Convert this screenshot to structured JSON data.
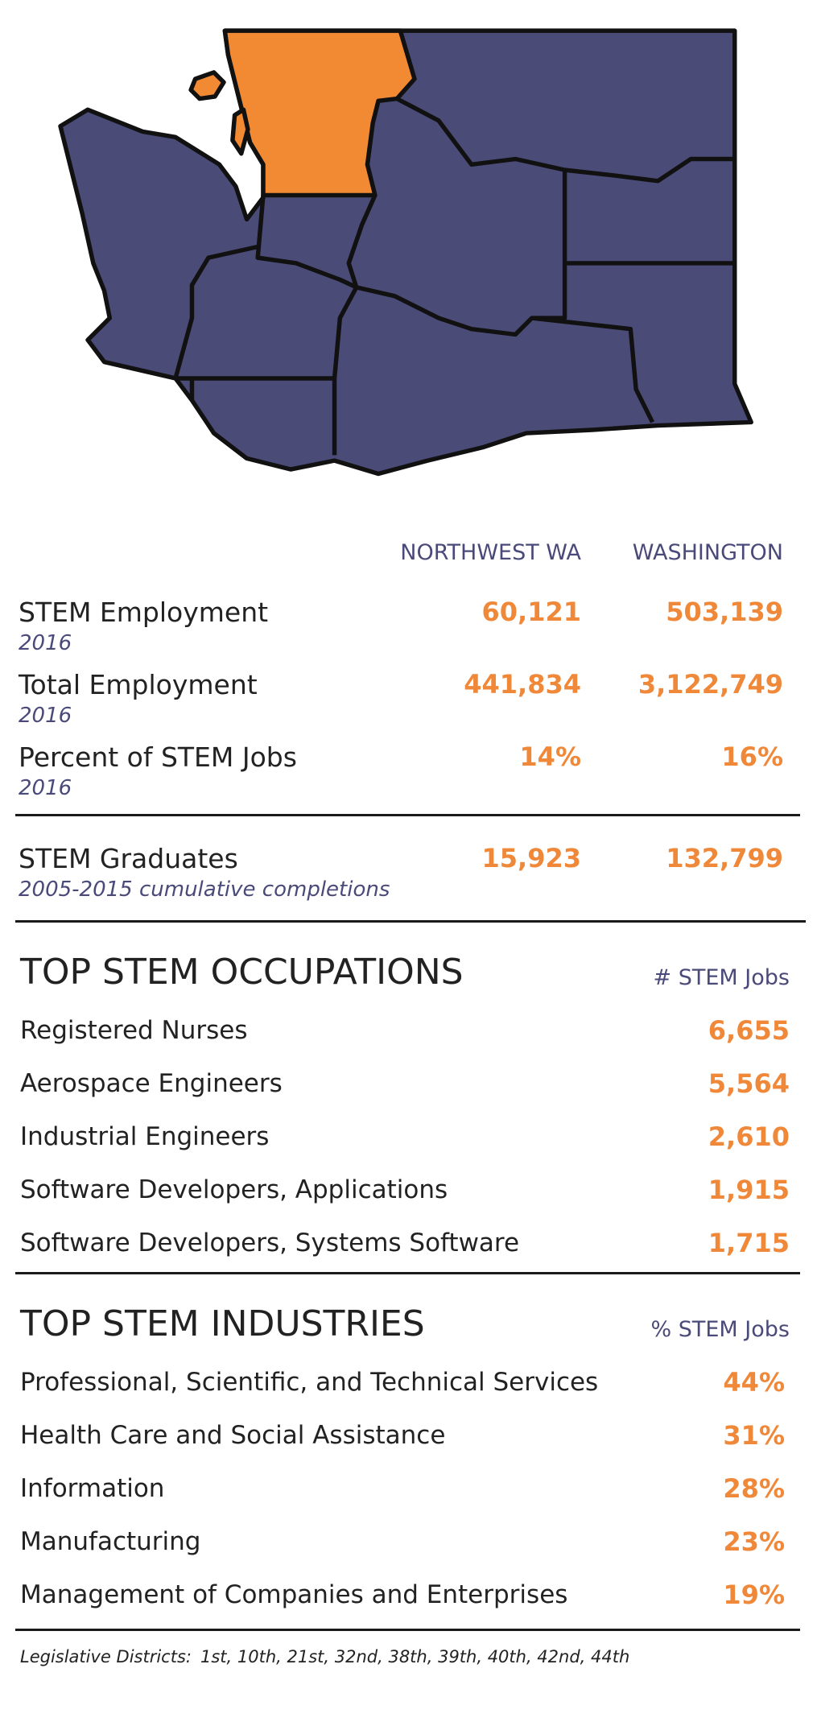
{
  "stats": {
    "columns": [
      "NORTHWEST WA",
      "WASHINGTON"
    ],
    "rows": [
      {
        "label": "STEM Employment",
        "period": "2016",
        "values": [
          "60,121",
          "503,139"
        ]
      },
      {
        "label": "Total Employment",
        "period": "2016",
        "values": [
          "441,834",
          "3,122,749"
        ]
      },
      {
        "label": "Percent of STEM Jobs",
        "period": "2016",
        "values": [
          "14%",
          "16%"
        ]
      },
      {
        "label": "STEM Graduates",
        "period": "2005-2015 cumulative completions",
        "values": [
          "15,923",
          "132,799"
        ]
      }
    ]
  },
  "occupations": {
    "title": "TOP STEM OCCUPATIONS",
    "column": "# STEM Jobs",
    "rows": [
      {
        "label": "Registered Nurses",
        "value": "6,655"
      },
      {
        "label": "Aerospace Engineers",
        "value": "5,564"
      },
      {
        "label": "Industrial Engineers",
        "value": "2,610"
      },
      {
        "label": "Software Developers, Applications",
        "value": "1,915"
      },
      {
        "label": "Software Developers, Systems Software",
        "value": "1,715"
      }
    ]
  },
  "industries": {
    "title": "TOP STEM INDUSTRIES",
    "column": "% STEM Jobs",
    "rows": [
      {
        "label": "Professional, Scientific, and Technical Services",
        "value": "44%"
      },
      {
        "label": "Health Care and Social Assistance",
        "value": "31%"
      },
      {
        "label": "Information",
        "value": "28%"
      },
      {
        "label": "Manufacturing",
        "value": "23%"
      },
      {
        "label": "Management of Companies and Enterprises",
        "value": "19%"
      }
    ]
  },
  "footer": {
    "label": "Legislative Districts:",
    "districts": "1st, 10th, 21st, 32nd, 38th, 39th, 40th, 42nd, 44th"
  }
}
